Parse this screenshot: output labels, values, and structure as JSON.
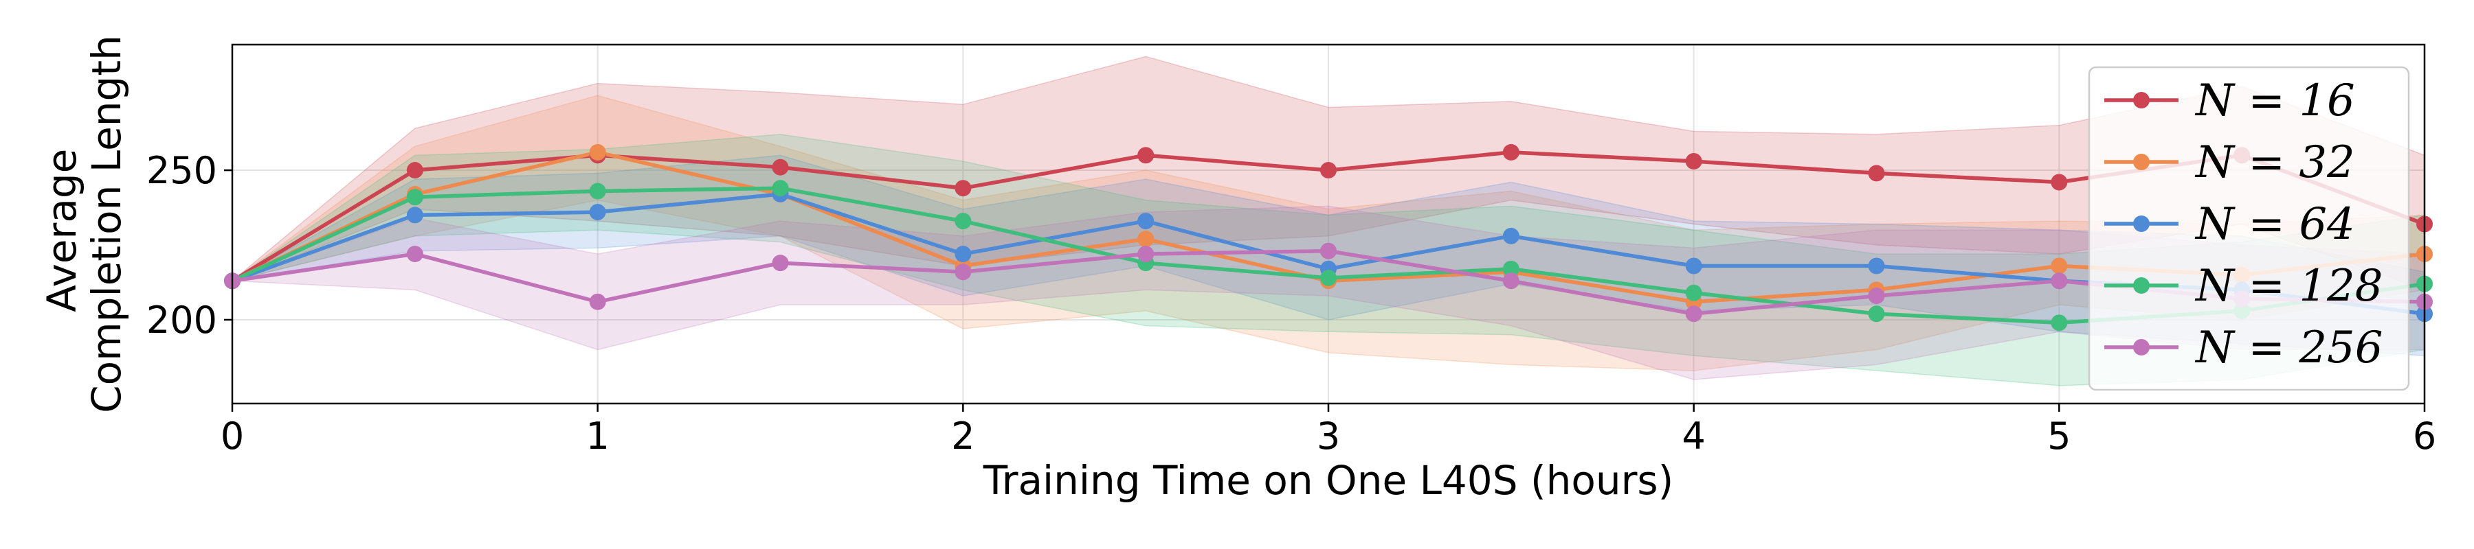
{
  "chart_data": {
    "type": "line",
    "xlabel": "Training Time on One L40S (hours)",
    "ylabel": [
      "Average",
      "Completion Length"
    ],
    "xlim": [
      0,
      6
    ],
    "ylim": [
      172,
      292
    ],
    "x_ticks": [
      "0",
      "1",
      "2",
      "3",
      "4",
      "5",
      "6"
    ],
    "y_ticks": [
      "200",
      "250"
    ],
    "grid": true,
    "legend_position": "top-right",
    "x": [
      0,
      0.5,
      1,
      1.5,
      2,
      2.5,
      3,
      3.5,
      4,
      4.5,
      5,
      5.5,
      6
    ],
    "series": [
      {
        "name": "N = 16",
        "color": "#cc4452",
        "values": [
          213,
          250,
          255,
          251,
          244,
          255,
          250,
          256,
          253,
          249,
          246,
          255,
          232
        ],
        "lower": [
          213,
          237,
          233,
          228,
          218,
          225,
          228,
          240,
          232,
          225,
          222,
          232,
          210
        ],
        "upper": [
          213,
          264,
          279,
          276,
          272,
          288,
          271,
          273,
          263,
          262,
          265,
          278,
          255
        ]
      },
      {
        "name": "N = 32",
        "color": "#ee8a4e",
        "values": [
          213,
          242,
          256,
          242,
          218,
          227,
          213,
          216,
          206,
          210,
          218,
          215,
          222
        ],
        "lower": [
          213,
          228,
          240,
          228,
          197,
          203,
          189,
          185,
          183,
          190,
          205,
          200,
          210
        ],
        "upper": [
          213,
          258,
          275,
          258,
          240,
          250,
          237,
          243,
          230,
          232,
          233,
          232,
          235
        ]
      },
      {
        "name": "N = 64",
        "color": "#4f8ad6",
        "values": [
          213,
          235,
          236,
          242,
          222,
          233,
          217,
          228,
          218,
          218,
          213,
          210,
          202
        ],
        "lower": [
          213,
          223,
          224,
          228,
          208,
          218,
          200,
          212,
          203,
          205,
          196,
          192,
          188
        ],
        "upper": [
          213,
          247,
          249,
          255,
          237,
          247,
          235,
          246,
          233,
          232,
          230,
          228,
          216
        ]
      },
      {
        "name": "N = 128",
        "color": "#3fbd7c",
        "values": [
          213,
          241,
          243,
          244,
          233,
          219,
          214,
          217,
          209,
          202,
          199,
          203,
          212
        ],
        "lower": [
          213,
          228,
          230,
          226,
          210,
          198,
          196,
          195,
          188,
          183,
          178,
          180,
          190
        ],
        "upper": [
          213,
          255,
          257,
          262,
          253,
          240,
          235,
          238,
          230,
          222,
          222,
          226,
          235
        ]
      },
      {
        "name": "N = 256",
        "color": "#c073b8",
        "values": [
          213,
          222,
          206,
          219,
          216,
          222,
          223,
          213,
          202,
          208,
          213,
          207,
          206
        ],
        "lower": [
          213,
          210,
          190,
          205,
          205,
          210,
          208,
          198,
          180,
          185,
          196,
          190,
          190
        ],
        "upper": [
          213,
          234,
          222,
          233,
          228,
          236,
          238,
          228,
          224,
          230,
          230,
          225,
          222
        ]
      }
    ]
  }
}
